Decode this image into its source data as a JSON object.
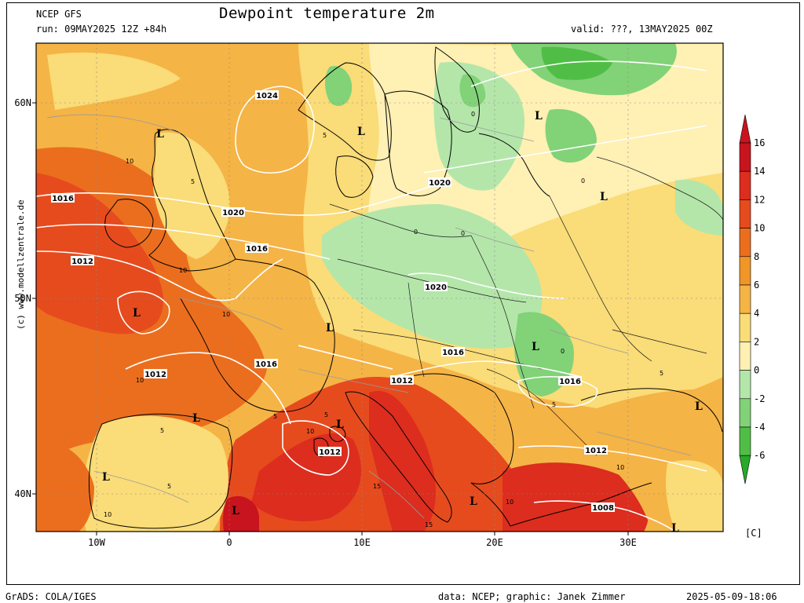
{
  "header": {
    "model": "NCEP GFS",
    "run": "run: 09MAY2025 12Z +84h",
    "title": "Dewpoint temperature 2m",
    "valid": "valid: ???, 13MAY2025 00Z"
  },
  "credit": "(c) www.modellzentrale.de",
  "footer": {
    "grads": "GrADS: COLA/IGES",
    "source": "data: NCEP; graphic: Janek Zimmer",
    "timestamp": "2025-05-09-18:06"
  },
  "axes": {
    "lat_labels": [
      "60N",
      "50N",
      "40N"
    ],
    "lon_labels": [
      "10W",
      "0",
      "10E",
      "20E",
      "30E"
    ]
  },
  "colorbar": {
    "unit": "[C]",
    "ticks": [
      "16",
      "14",
      "12",
      "10",
      "8",
      "6",
      "4",
      "2",
      "0",
      "-2",
      "-4",
      "-6"
    ],
    "colors": [
      "#c8141e",
      "#dc2d1e",
      "#e64b1e",
      "#eb6e1e",
      "#f09628",
      "#f5b446",
      "#fadc78",
      "#fff0b4",
      "#b4e6aa",
      "#82d278",
      "#50be46",
      "#28aa28"
    ]
  },
  "isobars": [
    {
      "label": "1024"
    },
    {
      "label": "1020"
    },
    {
      "label": "1020"
    },
    {
      "label": "1020"
    },
    {
      "label": "1016"
    },
    {
      "label": "1016"
    },
    {
      "label": "1016"
    },
    {
      "label": "1016"
    },
    {
      "label": "1016"
    },
    {
      "label": "1012"
    },
    {
      "label": "1012"
    },
    {
      "label": "1012"
    },
    {
      "label": "1012"
    },
    {
      "label": "1012"
    },
    {
      "label": "1008"
    }
  ],
  "lows": [
    "L",
    "L",
    "L",
    "L",
    "L",
    "L",
    "L",
    "L",
    "L",
    "L",
    "L",
    "L",
    "L",
    "L"
  ],
  "contour_labels": [
    "10",
    "10",
    "10",
    "10",
    "10",
    "10",
    "5",
    "5",
    "5",
    "5",
    "5",
    "5",
    "0",
    "0",
    "0",
    "0",
    "0",
    "15",
    "15",
    "5",
    "5",
    "10",
    "10"
  ]
}
